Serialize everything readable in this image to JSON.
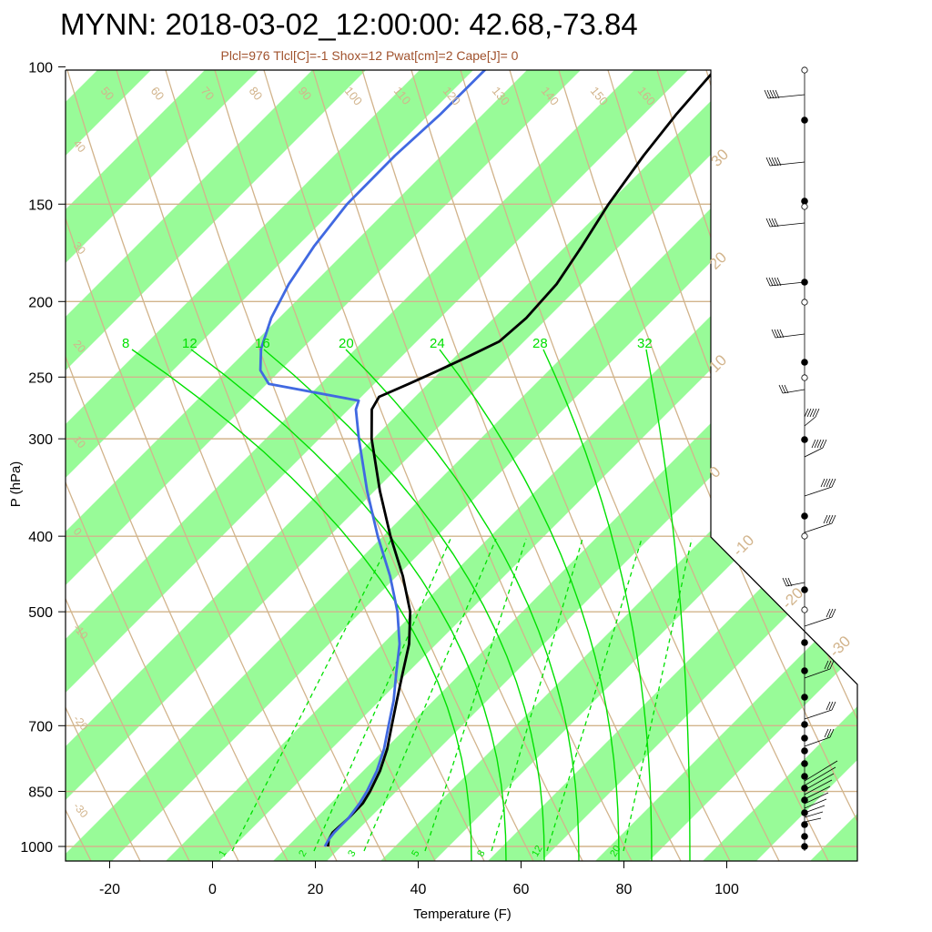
{
  "header": {
    "title": "MYNN: 2018-03-02_12:00:00: 42.68,-73.84",
    "subtitle": "Plcl=976 Tlcl[C]=-1 Shox=12 Pwat[cm]=2 Cape[J]= 0"
  },
  "colors": {
    "temperature": "#000000",
    "dewpoint": "#4169e1",
    "mixing_ratio": "#00e000",
    "theta_lines": "#d2b48c",
    "isotherm_band": "#98fb98",
    "label_tan": "#d2b48c"
  },
  "chart_data": {
    "type": "line",
    "title": "MYNN: 2018-03-02_12:00:00: 42.68,-73.84",
    "subtitle": "Plcl=976 Tlcl[C]=-1 Shox=12 Pwat[cm]=2 Cape[J]= 0",
    "xlabel": "Temperature (F)",
    "ylabel": "P (hPa)",
    "xticks": [
      "-20",
      "0",
      "20",
      "40",
      "60",
      "80",
      "100"
    ],
    "yticks": [
      "100",
      "150",
      "200",
      "250",
      "300",
      "400",
      "500",
      "700",
      "850",
      "1000"
    ],
    "ylim": [
      1000,
      100
    ],
    "y_scale": "log",
    "series": [
      {
        "color": "#000000",
        "pressure": [
          1000,
          980,
          960,
          920,
          880,
          850,
          800,
          750,
          700,
          650,
          600,
          550,
          500,
          450,
          400,
          350,
          300,
          275,
          265,
          255,
          245,
          235,
          225,
          210,
          190,
          170,
          150,
          130,
          115,
          100
        ],
        "temperature": [
          34.5,
          34.0,
          34.5,
          38,
          41,
          42,
          43,
          43,
          42,
          41,
          40,
          39,
          36,
          30,
          22,
          14,
          6,
          3,
          4,
          12,
          20,
          28,
          36,
          42,
          48,
          52,
          56,
          62,
          68,
          76
        ]
      },
      {
        "color": "#4169e1",
        "pressure": [
          1000,
          980,
          960,
          920,
          880,
          850,
          800,
          750,
          700,
          650,
          600,
          550,
          500,
          450,
          400,
          350,
          300,
          275,
          268,
          255,
          245,
          230,
          210,
          190,
          170,
          150,
          130,
          115,
          100
        ],
        "temperature": [
          33.5,
          34,
          35,
          38,
          40,
          41,
          42,
          42,
          41,
          40,
          38,
          36,
          32,
          26,
          18,
          10,
          2,
          -2,
          -2,
          -32,
          -36,
          -38,
          -38,
          -36,
          -32,
          -26,
          -16,
          -6,
          4
        ]
      }
    ],
    "mixing_ratio_labels": [
      "8",
      "12",
      "16",
      "20",
      "24",
      "28",
      "32"
    ],
    "mixing_ratio_dashed_labels": [
      "1",
      "2",
      "3",
      "5",
      "8",
      "12",
      "20"
    ],
    "theta_labels_top": [
      "50",
      "60",
      "70",
      "80",
      "90",
      "100",
      "110",
      "120",
      "130",
      "140",
      "150",
      "160"
    ],
    "theta_labels_left": [
      "40",
      "30",
      "20",
      "10",
      "0",
      "-10",
      "-20",
      "-30"
    ],
    "isotherm_labels_right": [
      "30",
      "20",
      "10",
      "0",
      "-10",
      "-20",
      "-30"
    ]
  }
}
